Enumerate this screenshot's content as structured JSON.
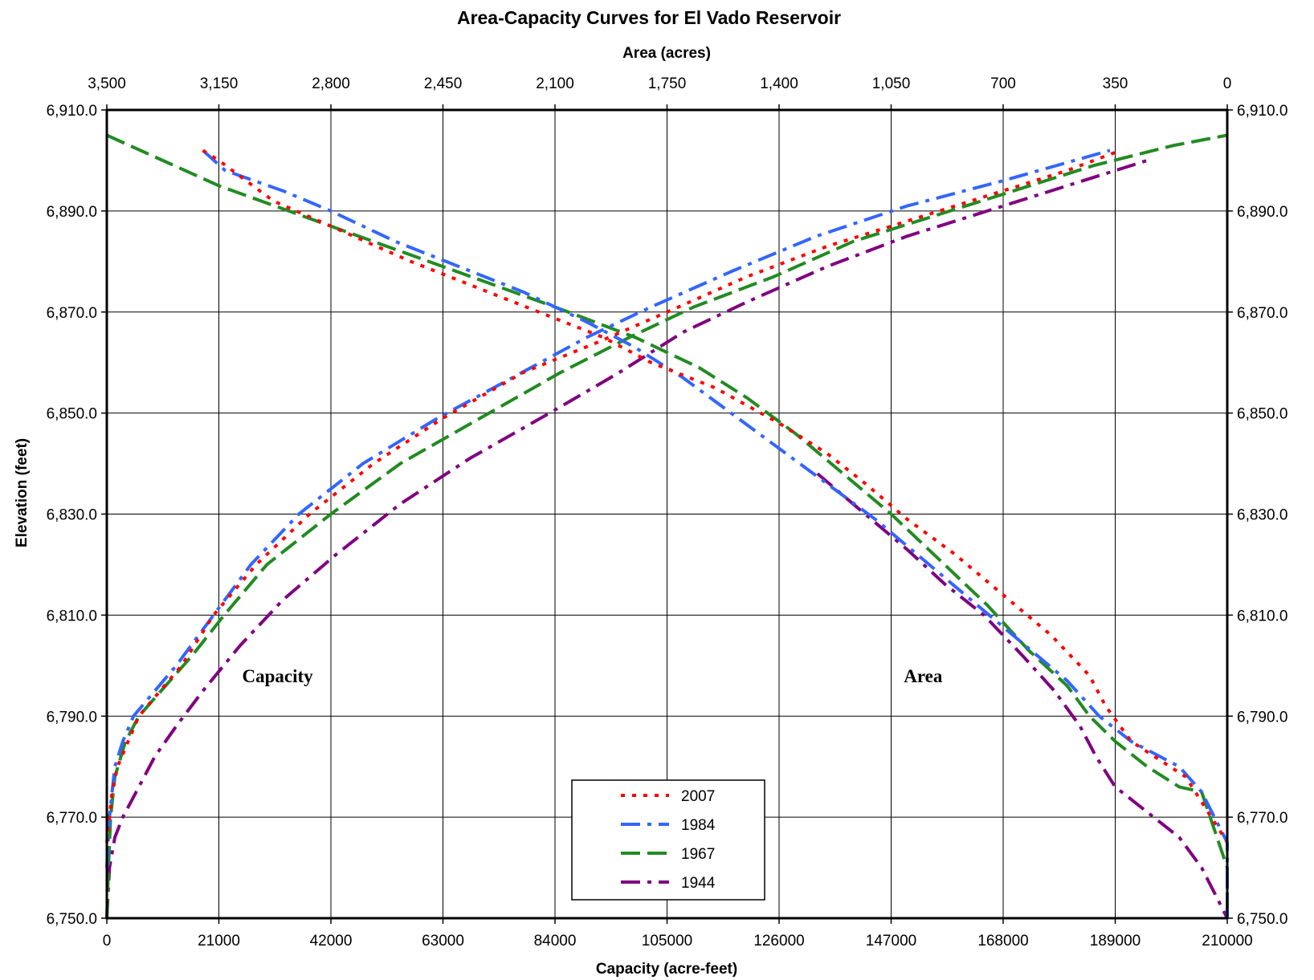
{
  "chart_data": {
    "type": "line",
    "title": "Area-Capacity Curves for El Vado Reservoir",
    "top_axis_label": "Area (acres)",
    "xlabel": "Capacity (acre-feet)",
    "ylabel": "Elevation (feet)",
    "x_capacity_range": [
      0,
      210000
    ],
    "x_area_range": [
      3500,
      0
    ],
    "ylim": [
      6750,
      6910
    ],
    "grid": true,
    "legend_position": "bottom-center",
    "bottom_ticks": [
      "0",
      "21000",
      "42000",
      "63000",
      "84000",
      "105000",
      "126000",
      "147000",
      "168000",
      "189000",
      "210000"
    ],
    "top_ticks": [
      "3,500",
      "3,150",
      "2,800",
      "2,450",
      "2,100",
      "1,750",
      "1,400",
      "1,050",
      "700",
      "350",
      "0"
    ],
    "y_ticks": [
      "6,750.0",
      "6,770.0",
      "6,790.0",
      "6,810.0",
      "6,830.0",
      "6,850.0",
      "6,870.0",
      "6,890.0",
      "6,910.0"
    ],
    "annotations": [
      {
        "text": "Capacity",
        "x_capacity": 32000,
        "y": 6798
      },
      {
        "text": "Area",
        "x_capacity": 153000,
        "y": 6798
      }
    ],
    "series": [
      {
        "name": "2007",
        "color": "#ff0000",
        "dash": "dot",
        "capacity": [
          [
            0,
            6765
          ],
          [
            500,
            6770
          ],
          [
            1000,
            6775
          ],
          [
            2000,
            6780
          ],
          [
            4000,
            6785
          ],
          [
            6000,
            6790
          ],
          [
            10000,
            6795
          ],
          [
            14000,
            6800
          ],
          [
            20000,
            6810
          ],
          [
            28000,
            6820
          ],
          [
            38000,
            6830
          ],
          [
            50000,
            6840
          ],
          [
            63000,
            6849
          ],
          [
            78000,
            6858
          ],
          [
            92000,
            6864
          ],
          [
            105000,
            6870
          ],
          [
            120000,
            6877
          ],
          [
            135000,
            6883
          ],
          [
            150000,
            6888
          ],
          [
            165000,
            6893
          ],
          [
            180000,
            6898
          ],
          [
            190000,
            6902
          ]
        ],
        "area": [
          [
            3200,
            6902
          ],
          [
            3150,
            6900
          ],
          [
            2980,
            6892
          ],
          [
            2800,
            6887
          ],
          [
            2550,
            6880
          ],
          [
            2350,
            6875
          ],
          [
            2150,
            6870
          ],
          [
            1950,
            6865
          ],
          [
            1800,
            6860
          ],
          [
            1600,
            6855
          ],
          [
            1400,
            6848
          ],
          [
            1250,
            6842
          ],
          [
            1130,
            6836
          ],
          [
            1000,
            6829
          ],
          [
            850,
            6822
          ],
          [
            700,
            6814
          ],
          [
            550,
            6806
          ],
          [
            430,
            6798
          ],
          [
            380,
            6792
          ],
          [
            300,
            6785
          ],
          [
            130,
            6778
          ],
          [
            50,
            6770
          ],
          [
            0,
            6765
          ]
        ]
      },
      {
        "name": "1984",
        "color": "#3366ff",
        "dash": "dashdot",
        "capacity": [
          [
            0,
            6760
          ],
          [
            500,
            6770
          ],
          [
            1000,
            6775
          ],
          [
            1500,
            6780
          ],
          [
            3000,
            6785
          ],
          [
            5000,
            6790
          ],
          [
            9000,
            6795
          ],
          [
            13000,
            6800
          ],
          [
            20000,
            6810
          ],
          [
            27000,
            6820
          ],
          [
            36000,
            6830
          ],
          [
            48000,
            6840
          ],
          [
            62000,
            6849
          ],
          [
            76000,
            6857
          ],
          [
            90000,
            6865
          ],
          [
            102000,
            6871
          ],
          [
            117000,
            6878
          ],
          [
            133000,
            6885
          ],
          [
            150000,
            6891
          ],
          [
            168000,
            6896
          ],
          [
            188000,
            6902
          ]
        ],
        "area": [
          [
            3200,
            6902
          ],
          [
            3130,
            6898
          ],
          [
            2950,
            6894
          ],
          [
            2800,
            6890
          ],
          [
            2600,
            6884
          ],
          [
            2400,
            6879
          ],
          [
            2200,
            6874
          ],
          [
            2000,
            6868
          ],
          [
            1850,
            6863
          ],
          [
            1700,
            6857
          ],
          [
            1550,
            6850
          ],
          [
            1400,
            6843
          ],
          [
            1250,
            6836
          ],
          [
            1100,
            6829
          ],
          [
            950,
            6821
          ],
          [
            800,
            6813
          ],
          [
            650,
            6805
          ],
          [
            500,
            6797
          ],
          [
            400,
            6790
          ],
          [
            300,
            6785
          ],
          [
            150,
            6780
          ],
          [
            80,
            6775
          ],
          [
            0,
            6765
          ],
          [
            0,
            6750
          ]
        ]
      },
      {
        "name": "1967",
        "color": "#228b22",
        "dash": "dash",
        "capacity": [
          [
            0,
            6750
          ],
          [
            300,
            6760
          ],
          [
            700,
            6770
          ],
          [
            1500,
            6778
          ],
          [
            3500,
            6785
          ],
          [
            6000,
            6790
          ],
          [
            11000,
            6796
          ],
          [
            16000,
            6802
          ],
          [
            22000,
            6810
          ],
          [
            30000,
            6820
          ],
          [
            42000,
            6830
          ],
          [
            55000,
            6840
          ],
          [
            70000,
            6849
          ],
          [
            85000,
            6858
          ],
          [
            98000,
            6865
          ],
          [
            110000,
            6871
          ],
          [
            125000,
            6877
          ],
          [
            140000,
            6884
          ],
          [
            155000,
            6889
          ],
          [
            170000,
            6894
          ],
          [
            185000,
            6899
          ],
          [
            200000,
            6903
          ],
          [
            210000,
            6905
          ]
        ],
        "area": [
          [
            3500,
            6905
          ],
          [
            3150,
            6895
          ],
          [
            2800,
            6887
          ],
          [
            2450,
            6879
          ],
          [
            2100,
            6871
          ],
          [
            1850,
            6865
          ],
          [
            1650,
            6859
          ],
          [
            1500,
            6853
          ],
          [
            1350,
            6846
          ],
          [
            1200,
            6838
          ],
          [
            1050,
            6830
          ],
          [
            900,
            6821
          ],
          [
            750,
            6812
          ],
          [
            620,
            6803
          ],
          [
            500,
            6796
          ],
          [
            430,
            6790
          ],
          [
            350,
            6785
          ],
          [
            250,
            6780
          ],
          [
            150,
            6776
          ],
          [
            80,
            6775
          ],
          [
            0,
            6760
          ],
          [
            0,
            6750
          ]
        ]
      },
      {
        "name": "1944",
        "color": "#800080",
        "dash": "dashdot",
        "capacity": [
          [
            0,
            6750
          ],
          [
            500,
            6760
          ],
          [
            1500,
            6766
          ],
          [
            3000,
            6770
          ],
          [
            6000,
            6776
          ],
          [
            9000,
            6782
          ],
          [
            13000,
            6788
          ],
          [
            18000,
            6795
          ],
          [
            25000,
            6804
          ],
          [
            33000,
            6813
          ],
          [
            43000,
            6822
          ],
          [
            55000,
            6832
          ],
          [
            68000,
            6841
          ],
          [
            83000,
            6850
          ],
          [
            96000,
            6858
          ],
          [
            108000,
            6866
          ],
          [
            120000,
            6872
          ],
          [
            135000,
            6879
          ],
          [
            150000,
            6885
          ],
          [
            165000,
            6890
          ],
          [
            180000,
            6895
          ],
          [
            195000,
            6900
          ]
        ],
        "area": [
          [
            1280,
            6838
          ],
          [
            1150,
            6831
          ],
          [
            1000,
            6823
          ],
          [
            880,
            6816
          ],
          [
            760,
            6810
          ],
          [
            640,
            6802
          ],
          [
            540,
            6795
          ],
          [
            460,
            6788
          ],
          [
            410,
            6782
          ],
          [
            350,
            6776
          ],
          [
            250,
            6771
          ],
          [
            150,
            6766
          ],
          [
            80,
            6760
          ],
          [
            40,
            6755
          ],
          [
            0,
            6750
          ]
        ]
      }
    ]
  }
}
